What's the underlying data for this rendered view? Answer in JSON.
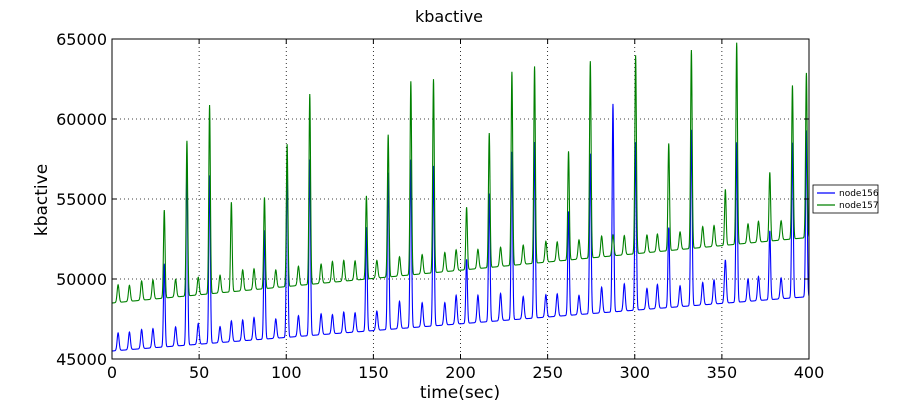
{
  "chart_data": {
    "type": "line",
    "title": "kbactive",
    "xlabel": "time(sec)",
    "ylabel": "kbactive",
    "xlim": [
      0,
      400
    ],
    "ylim": [
      45000,
      65000
    ],
    "x_ticks": [
      0,
      50,
      100,
      150,
      200,
      250,
      300,
      350,
      400
    ],
    "y_ticks": [
      45000,
      50000,
      55000,
      60000,
      65000
    ],
    "grid": true,
    "legend_position": "right",
    "series": [
      {
        "name": "node156",
        "color": "#0000ff",
        "baseline_start": 45500,
        "baseline_end": 48900,
        "small_peak_offset": 1100,
        "peaks": [
          [
            3.5,
            1100
          ],
          [
            10,
            1100
          ],
          [
            17,
            1200
          ],
          [
            23.5,
            1200
          ],
          [
            30,
            5200
          ],
          [
            36.5,
            1200
          ],
          [
            43,
            11500
          ],
          [
            49.5,
            1300
          ],
          [
            56,
            10500
          ],
          [
            62,
            1000
          ],
          [
            68.5,
            1300
          ],
          [
            75,
            1300
          ],
          [
            81.5,
            1400
          ],
          [
            87.5,
            6800
          ],
          [
            94,
            1200
          ],
          [
            100.5,
            10500
          ],
          [
            107,
            1300
          ],
          [
            113.5,
            11000
          ],
          [
            120,
            1300
          ],
          [
            126.5,
            1200
          ],
          [
            133,
            1300
          ],
          [
            139.5,
            1200
          ],
          [
            146,
            6500
          ],
          [
            152,
            1200
          ],
          [
            158.5,
            9800
          ],
          [
            165,
            1700
          ],
          [
            171.5,
            10500
          ],
          [
            178,
            1500
          ],
          [
            184.5,
            10000
          ],
          [
            191,
            1400
          ],
          [
            197.5,
            1800
          ],
          [
            203.5,
            4000
          ],
          [
            210,
            1700
          ],
          [
            216.5,
            8000
          ],
          [
            223,
            1700
          ],
          [
            229.5,
            10500
          ],
          [
            236,
            1400
          ],
          [
            242.5,
            11000
          ],
          [
            249,
            1400
          ],
          [
            255.5,
            1400
          ],
          [
            262,
            6500
          ],
          [
            268,
            1200
          ],
          [
            274.5,
            10000
          ],
          [
            281,
            1600
          ],
          [
            287.5,
            13000
          ],
          [
            294,
            1700
          ],
          [
            300.5,
            10500
          ],
          [
            307,
            1300
          ],
          [
            313,
            1500
          ],
          [
            319.5,
            5000
          ],
          [
            326,
            1300
          ],
          [
            332.5,
            11000
          ],
          [
            339,
            1400
          ],
          [
            345.5,
            1500
          ],
          [
            352,
            2700
          ],
          [
            358.5,
            10000
          ],
          [
            365,
            1400
          ],
          [
            371,
            1500
          ],
          [
            377.5,
            4300
          ],
          [
            384,
            1300
          ],
          [
            390.5,
            9700
          ],
          [
            398.5,
            10400
          ]
        ]
      },
      {
        "name": "node157",
        "color": "#008000",
        "baseline_start": 48500,
        "baseline_end": 52600,
        "small_peak_offset": 1100,
        "peaks": [
          [
            3.5,
            1100
          ],
          [
            10,
            1000
          ],
          [
            17,
            1200
          ],
          [
            23.5,
            1200
          ],
          [
            30,
            5500
          ],
          [
            36.5,
            1100
          ],
          [
            43,
            9700
          ],
          [
            49.5,
            1100
          ],
          [
            56,
            11800
          ],
          [
            62,
            1100
          ],
          [
            68.5,
            5600
          ],
          [
            75,
            1300
          ],
          [
            81.5,
            1300
          ],
          [
            87.5,
            5700
          ],
          [
            94,
            1100
          ],
          [
            100.5,
            8900
          ],
          [
            107,
            1200
          ],
          [
            113.5,
            11900
          ],
          [
            120,
            1200
          ],
          [
            126.5,
            1300
          ],
          [
            133,
            1300
          ],
          [
            139.5,
            1200
          ],
          [
            146,
            5200
          ],
          [
            152,
            1100
          ],
          [
            158.5,
            8900
          ],
          [
            165,
            1200
          ],
          [
            171.5,
            12100
          ],
          [
            178,
            1200
          ],
          [
            184.5,
            12100
          ],
          [
            191,
            1200
          ],
          [
            197.5,
            1300
          ],
          [
            203.5,
            3900
          ],
          [
            210,
            1200
          ],
          [
            216.5,
            8400
          ],
          [
            223,
            1200
          ],
          [
            229.5,
            12100
          ],
          [
            236,
            1200
          ],
          [
            242.5,
            12300
          ],
          [
            249,
            1300
          ],
          [
            255.5,
            1200
          ],
          [
            262,
            6800
          ],
          [
            268,
            1200
          ],
          [
            274.5,
            12300
          ],
          [
            281,
            1300
          ],
          [
            287.5,
            1300
          ],
          [
            294,
            1200
          ],
          [
            300.5,
            12400
          ],
          [
            307,
            1100
          ],
          [
            313,
            1100
          ],
          [
            319.5,
            6700
          ],
          [
            326,
            1100
          ],
          [
            332.5,
            12400
          ],
          [
            339,
            1300
          ],
          [
            345.5,
            1300
          ],
          [
            352,
            3500
          ],
          [
            358.5,
            12600
          ],
          [
            365,
            1200
          ],
          [
            371,
            1300
          ],
          [
            377.5,
            4300
          ],
          [
            384,
            1200
          ],
          [
            390.5,
            9600
          ],
          [
            398.5,
            10300
          ]
        ]
      }
    ]
  }
}
